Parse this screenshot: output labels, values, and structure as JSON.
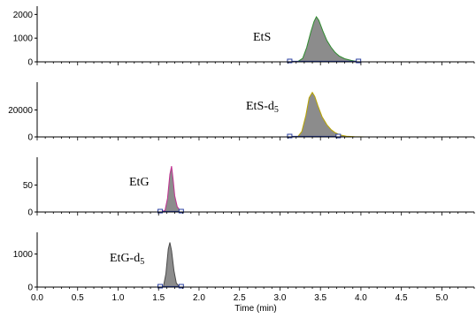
{
  "chart_data": {
    "type": "area",
    "x_axis": {
      "label": "Time (min)",
      "range": [
        0.0,
        5.4
      ],
      "ticks": [
        0.0,
        0.5,
        1.0,
        1.5,
        2.0,
        2.5,
        3.0,
        3.5,
        4.0,
        4.5,
        5.0
      ],
      "tick_labels": [
        "0.0",
        "0.5",
        "1.0",
        "1.5",
        "2.0",
        "2.5",
        "3.0",
        "3.5",
        "4.0",
        "4.5",
        "5.0"
      ]
    },
    "panels": [
      {
        "label": "EtS",
        "label_subscript": "",
        "ylim": [
          0,
          2200
        ],
        "yticks": [
          0,
          1000,
          2000
        ],
        "ytick_labels": [
          "0",
          "1000",
          "2000"
        ],
        "line_color": "#2e8b2e",
        "fill_color": "#8c8c8c",
        "integration_window": [
          3.12,
          3.97
        ],
        "points": [
          [
            0,
            0
          ],
          [
            3.12,
            0
          ],
          [
            3.22,
            10
          ],
          [
            3.28,
            150
          ],
          [
            3.33,
            600
          ],
          [
            3.38,
            1250
          ],
          [
            3.42,
            1700
          ],
          [
            3.45,
            1900
          ],
          [
            3.48,
            1750
          ],
          [
            3.53,
            1300
          ],
          [
            3.58,
            900
          ],
          [
            3.63,
            620
          ],
          [
            3.68,
            400
          ],
          [
            3.73,
            250
          ],
          [
            3.8,
            130
          ],
          [
            3.88,
            60
          ],
          [
            3.97,
            0
          ],
          [
            5.4,
            0
          ]
        ]
      },
      {
        "label": "EtS-d",
        "label_subscript": "5",
        "ylim": [
          0,
          38000
        ],
        "yticks": [
          0,
          20000
        ],
        "ytick_labels": [
          "0",
          "20000"
        ],
        "line_color": "#b8a400",
        "fill_color": "#8c8c8c",
        "integration_window": [
          3.12,
          3.72
        ],
        "points": [
          [
            0,
            0
          ],
          [
            3.12,
            0
          ],
          [
            3.22,
            200
          ],
          [
            3.27,
            4000
          ],
          [
            3.32,
            16000
          ],
          [
            3.36,
            29000
          ],
          [
            3.4,
            33000
          ],
          [
            3.43,
            30000
          ],
          [
            3.47,
            23000
          ],
          [
            3.52,
            15000
          ],
          [
            3.58,
            9000
          ],
          [
            3.63,
            5500
          ],
          [
            3.68,
            3200
          ],
          [
            3.74,
            1500
          ],
          [
            3.82,
            500
          ],
          [
            3.92,
            100
          ],
          [
            4.05,
            0
          ],
          [
            5.4,
            0
          ]
        ]
      },
      {
        "label": "EtG",
        "label_subscript": "",
        "ylim": [
          0,
          95
        ],
        "yticks": [
          0,
          50
        ],
        "ytick_labels": [
          "0",
          "50"
        ],
        "line_color": "#c03090",
        "fill_color": "#8c8c8c",
        "integration_window": [
          1.52,
          1.78
        ],
        "points": [
          [
            0,
            0
          ],
          [
            1.52,
            0
          ],
          [
            1.58,
            3
          ],
          [
            1.61,
            25
          ],
          [
            1.64,
            70
          ],
          [
            1.66,
            85
          ],
          [
            1.68,
            60
          ],
          [
            1.7,
            30
          ],
          [
            1.73,
            10
          ],
          [
            1.78,
            0
          ],
          [
            5.4,
            0
          ]
        ]
      },
      {
        "label": "EtG-d",
        "label_subscript": "5",
        "ylim": [
          0,
          1550
        ],
        "yticks": [
          0,
          1000
        ],
        "ytick_labels": [
          "0",
          "1000"
        ],
        "line_color": "#4a4a4a",
        "fill_color": "#8c8c8c",
        "integration_window": [
          1.52,
          1.78
        ],
        "points": [
          [
            0,
            0
          ],
          [
            1.52,
            0
          ],
          [
            1.56,
            20
          ],
          [
            1.59,
            400
          ],
          [
            1.62,
            1150
          ],
          [
            1.64,
            1350
          ],
          [
            1.66,
            1100
          ],
          [
            1.69,
            500
          ],
          [
            1.72,
            120
          ],
          [
            1.76,
            0
          ],
          [
            5.4,
            0
          ]
        ]
      }
    ]
  }
}
